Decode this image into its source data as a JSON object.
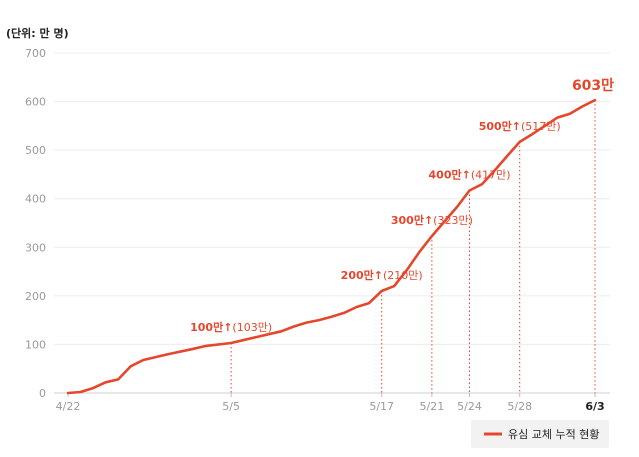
{
  "chart_data": {
    "type": "line",
    "unit_label": "(단위: 만 명)",
    "ylim": [
      0,
      700
    ],
    "yticks": [
      0,
      100,
      200,
      300,
      400,
      500,
      600,
      700
    ],
    "grid": true,
    "legend_position": "bottom-right",
    "accent_color": "#e5472d",
    "series": [
      {
        "name": "유심 교체 누적 현황",
        "points": [
          {
            "x": "2025-04-22",
            "y": 0
          },
          {
            "x": "2025-04-23",
            "y": 2
          },
          {
            "x": "2025-04-24",
            "y": 10
          },
          {
            "x": "2025-04-25",
            "y": 22
          },
          {
            "x": "2025-04-26",
            "y": 28
          },
          {
            "x": "2025-04-27",
            "y": 55
          },
          {
            "x": "2025-04-28",
            "y": 68
          },
          {
            "x": "2025-04-30",
            "y": 80
          },
          {
            "x": "2025-05-02",
            "y": 91
          },
          {
            "x": "2025-05-03",
            "y": 97
          },
          {
            "x": "2025-05-05",
            "y": 103
          },
          {
            "x": "2025-05-07",
            "y": 115
          },
          {
            "x": "2025-05-09",
            "y": 127
          },
          {
            "x": "2025-05-10",
            "y": 137
          },
          {
            "x": "2025-05-11",
            "y": 145
          },
          {
            "x": "2025-05-12",
            "y": 150
          },
          {
            "x": "2025-05-13",
            "y": 157
          },
          {
            "x": "2025-05-14",
            "y": 165
          },
          {
            "x": "2025-05-15",
            "y": 177
          },
          {
            "x": "2025-05-16",
            "y": 185
          },
          {
            "x": "2025-05-17",
            "y": 210
          },
          {
            "x": "2025-05-18",
            "y": 220
          },
          {
            "x": "2025-05-19",
            "y": 253
          },
          {
            "x": "2025-05-20",
            "y": 290
          },
          {
            "x": "2025-05-21",
            "y": 323
          },
          {
            "x": "2025-05-22",
            "y": 353
          },
          {
            "x": "2025-05-23",
            "y": 383
          },
          {
            "x": "2025-05-24",
            "y": 417
          },
          {
            "x": "2025-05-25",
            "y": 430
          },
          {
            "x": "2025-05-26",
            "y": 458
          },
          {
            "x": "2025-05-27",
            "y": 488
          },
          {
            "x": "2025-05-28",
            "y": 517
          },
          {
            "x": "2025-05-29",
            "y": 533
          },
          {
            "x": "2025-05-30",
            "y": 550
          },
          {
            "x": "2025-05-31",
            "y": 567
          },
          {
            "x": "2025-06-01",
            "y": 575
          },
          {
            "x": "2025-06-02",
            "y": 590
          },
          {
            "x": "2025-06-03",
            "y": 603
          }
        ]
      }
    ],
    "x_ticks": [
      {
        "date": "2025-04-22",
        "label": "4/22",
        "bold": false
      },
      {
        "date": "2025-05-05",
        "label": "5/5",
        "bold": false
      },
      {
        "date": "2025-05-17",
        "label": "5/17",
        "bold": false
      },
      {
        "date": "2025-05-21",
        "label": "5/21",
        "bold": false
      },
      {
        "date": "2025-05-24",
        "label": "5/24",
        "bold": false
      },
      {
        "date": "2025-05-28",
        "label": "5/28",
        "bold": false
      },
      {
        "date": "2025-06-03",
        "label": "6/3",
        "bold": true
      }
    ],
    "annotations": [
      {
        "date": "2025-05-05",
        "value": 103,
        "main": "100만↑",
        "sub": "(103만)"
      },
      {
        "date": "2025-05-17",
        "value": 210,
        "main": "200만↑",
        "sub": "(210만)"
      },
      {
        "date": "2025-05-21",
        "value": 323,
        "main": "300만↑",
        "sub": "(323만)"
      },
      {
        "date": "2025-05-24",
        "value": 417,
        "main": "400만↑",
        "sub": "(417만)"
      },
      {
        "date": "2025-05-28",
        "value": 517,
        "main": "500만↑",
        "sub": "(517만)"
      }
    ],
    "end_label": {
      "date": "2025-06-03",
      "value": 603,
      "text": "603만"
    }
  }
}
